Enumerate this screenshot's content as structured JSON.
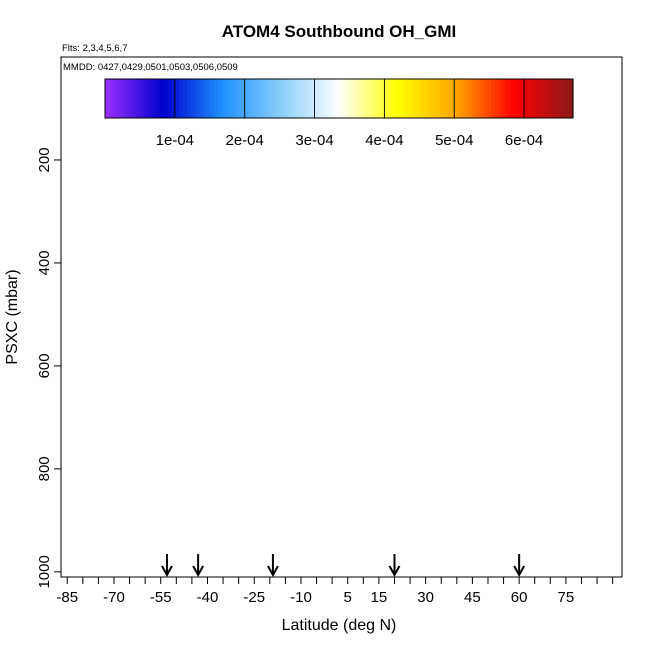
{
  "chart_data": {
    "type": "heatmap",
    "title": "ATOM4 Southbound OH_GMI",
    "flights_label": "Flts: 2,3,4,5,6,7",
    "dates_label": "MMDD: 0427,0429,0501,0503,0506,0509",
    "xlabel": "Latitude (deg N)",
    "ylabel": "PSXC (mbar)",
    "xlim": [
      -87,
      93
    ],
    "ylim": [
      1010,
      0
    ],
    "x_ticks": [
      -85,
      -70,
      -55,
      -40,
      -25,
      -10,
      5,
      15,
      30,
      45,
      60,
      75
    ],
    "x_tick_labels": [
      "-85",
      "-70",
      "-55",
      "-40",
      "-25",
      "-10",
      "5",
      "15",
      "30",
      "45",
      "60",
      "75"
    ],
    "y_ticks": [
      200,
      400,
      600,
      800,
      1000
    ],
    "y_tick_labels": [
      "200",
      "400",
      "600",
      "800",
      "1000"
    ],
    "colorbar": {
      "min": 0,
      "max": 0.00067,
      "tick_values": [
        0.0001,
        0.0002,
        0.0003,
        0.0004,
        0.0005,
        0.0006
      ],
      "tick_labels": [
        "1e-04",
        "2e-04",
        "3e-04",
        "4e-04",
        "5e-04",
        "6e-04"
      ],
      "colors": [
        "#9b30ff",
        "#0000cd",
        "#1e90ff",
        "#87cefa",
        "#ffffff",
        "#ffff00",
        "#ffa500",
        "#ff0000",
        "#8b1a1a"
      ]
    },
    "arrow_latitudes": [
      -53,
      -43,
      -19,
      20,
      60
    ],
    "colors": {
      "low": "#8e2ee8",
      "mid": "#1e90ff",
      "high": "#ffd700",
      "marker": "#ffffff"
    }
  }
}
